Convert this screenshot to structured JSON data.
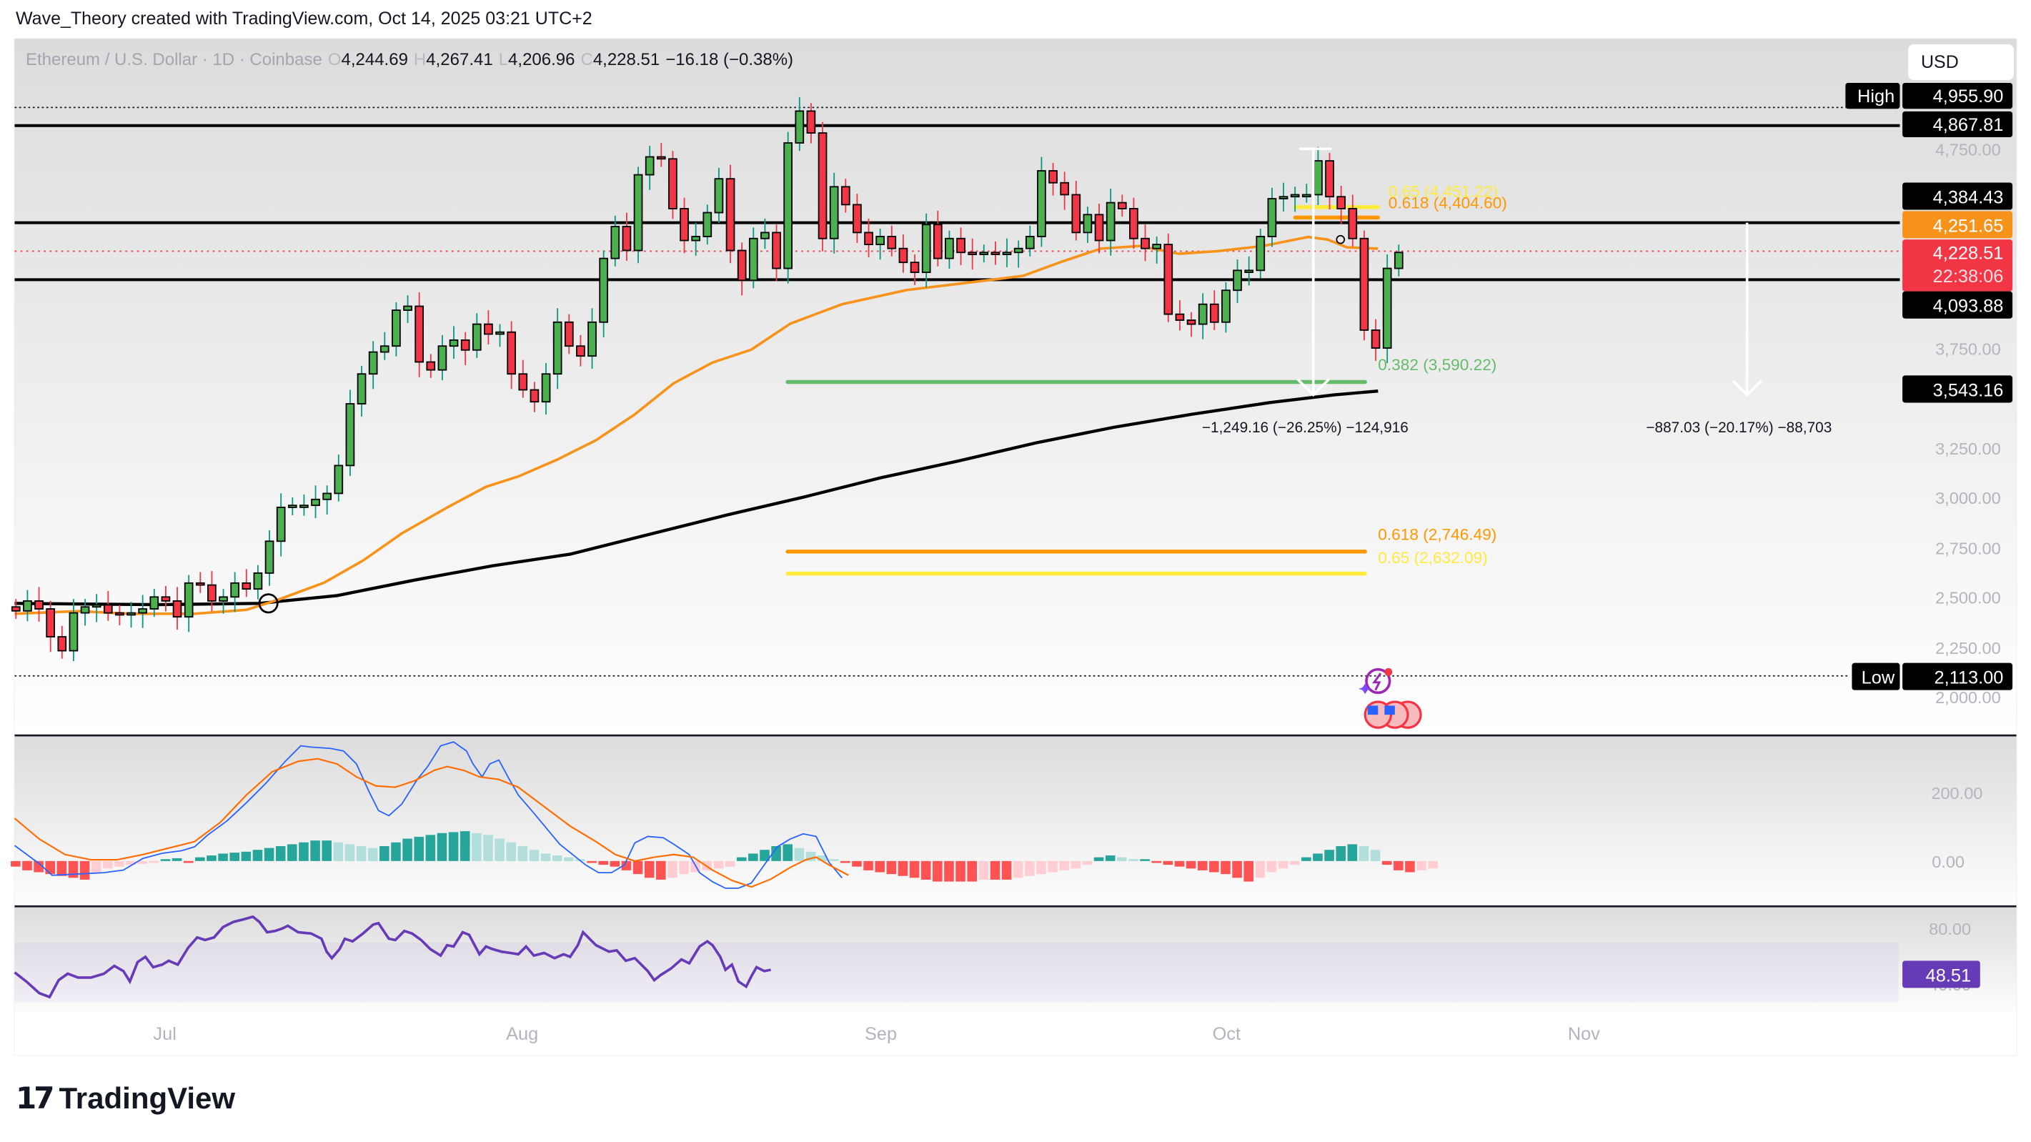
{
  "header": {
    "attribution": "Wave_Theory created with TradingView.com, Oct 14, 2025 03:21 UTC+2"
  },
  "legend": {
    "symbol": "Ethereum / U.S. Dollar · 1D · Coinbase",
    "open_key": "O",
    "open": "4,244.69",
    "high_key": "H",
    "high": "4,267.41",
    "low_key": "L",
    "low": "4,206.96",
    "close_key": "C",
    "close": "4,228.51",
    "change": "−16.18 (−0.38%)"
  },
  "currency_button": "USD",
  "price_axis": {
    "ticks": [
      "4,750.00",
      "3,750.00",
      "3,250.00",
      "3,000.00",
      "2,750.00",
      "2,500.00",
      "2,250.00",
      "2,000.00"
    ],
    "labels": {
      "high_tag": "High",
      "high_value": "4,955.90",
      "level_1": "4,867.81",
      "level_2": "4,384.43",
      "ema_value": "4,251.65",
      "last_price": "4,228.51",
      "countdown": "22:38:06",
      "level_3": "4,093.88",
      "level_4": "3,543.16",
      "low_tag": "Low",
      "low_value": "2,113.00"
    }
  },
  "macd_axis": {
    "ticks": [
      "200.00",
      "0.00"
    ]
  },
  "rsi_axis": {
    "ticks": [
      "80.00",
      "40.00"
    ],
    "value": "48.51"
  },
  "time_axis": [
    "Jul",
    "Aug",
    "Sep",
    "Oct",
    "Nov"
  ],
  "annotations": {
    "fib_0_65_upper": "0.65 (4,451.22)",
    "fib_0_618_upper": "0.618 (4,404.60)",
    "fib_0_382": "0.382 (3,590.22)",
    "fib_0_618_lower": "0.618 (2,746.49)",
    "fib_0_65_lower": "0.65 (2,632.09)",
    "measure_1": "−1,249.16 (−26.25%) −124,916",
    "measure_2": "−887.03 (−20.17%) −88,703"
  },
  "logo": {
    "mark": "17",
    "text": "TradingView"
  },
  "colors": {
    "up": "#4caf50",
    "down": "#f23645",
    "ema_fast": "#f7931a",
    "ema_slow": "#000000",
    "fib_618": "#ff9800",
    "fib_65": "#ffeb3b",
    "fib_382": "#66bb6a",
    "macd": "#2962ff",
    "signal": "#ff6d00",
    "rsi": "#673ab7"
  },
  "chart_data": {
    "type": "candlestick",
    "title": "Ethereum / U.S. Dollar · 1D · Coinbase",
    "ylabel": "USD",
    "ylim": [
      1900,
      5050
    ],
    "x_ticks": [
      "Jul",
      "Aug",
      "Sep",
      "Oct",
      "Nov"
    ],
    "last": {
      "open": 4244.69,
      "high": 4267.41,
      "low": 4206.96,
      "close": 4228.51,
      "change": -16.18,
      "change_pct": -0.38
    },
    "high": 4955.9,
    "low": 2113.0,
    "horizontal_levels": [
      4867.81,
      4384.43,
      4093.88,
      3543.16
    ],
    "ema_50_last": 4251.65,
    "fibonacci": [
      {
        "level": 0.65,
        "price": 4451.22
      },
      {
        "level": 0.618,
        "price": 4404.6
      },
      {
        "level": 0.382,
        "price": 3590.22
      },
      {
        "level": 0.618,
        "price": 2746.49
      },
      {
        "level": 0.65,
        "price": 2632.09
      }
    ],
    "measurements": [
      {
        "change": -1249.16,
        "pct": -26.25,
        "ticks": -124916
      },
      {
        "change": -887.03,
        "pct": -20.17,
        "ticks": -88703
      }
    ],
    "approx_closes": [
      2430,
      2480,
      2440,
      2300,
      2230,
      2420,
      2450,
      2460,
      2420,
      2410,
      2420,
      2440,
      2500,
      2480,
      2400,
      2570,
      2560,
      2480,
      2500,
      2570,
      2540,
      2620,
      2780,
      2950,
      2960,
      2960,
      2990,
      3020,
      3160,
      3470,
      3620,
      3730,
      3760,
      3940,
      3960,
      3680,
      3640,
      3760,
      3790,
      3740,
      3870,
      3820,
      3830,
      3620,
      3540,
      3480,
      3620,
      3880,
      3760,
      3710,
      3880,
      4200,
      4360,
      4240,
      4620,
      4710,
      4700,
      4450,
      4290,
      4310,
      4430,
      4600,
      4240,
      4090,
      4300,
      4330,
      4150,
      4780,
      4940,
      4830,
      4300,
      4560,
      4470,
      4330,
      4270,
      4310,
      4250,
      4180,
      4130,
      4370,
      4200,
      4300,
      4230,
      4220,
      4230,
      4220,
      4230,
      4250,
      4310,
      4640,
      4580,
      4520,
      4330,
      4420,
      4290,
      4480,
      4450,
      4300,
      4250,
      4270,
      3920,
      3890,
      3870,
      3970,
      3880,
      4040,
      4140,
      4140,
      4310,
      4500,
      4510,
      4520,
      4520,
      4690,
      4510,
      4450,
      4300,
      3840,
      3750,
      4150,
      4230
    ],
    "macd_ylim": [
      -80,
      300
    ],
    "rsi_ylim": [
      30,
      90
    ],
    "rsi_last": 48.51
  }
}
